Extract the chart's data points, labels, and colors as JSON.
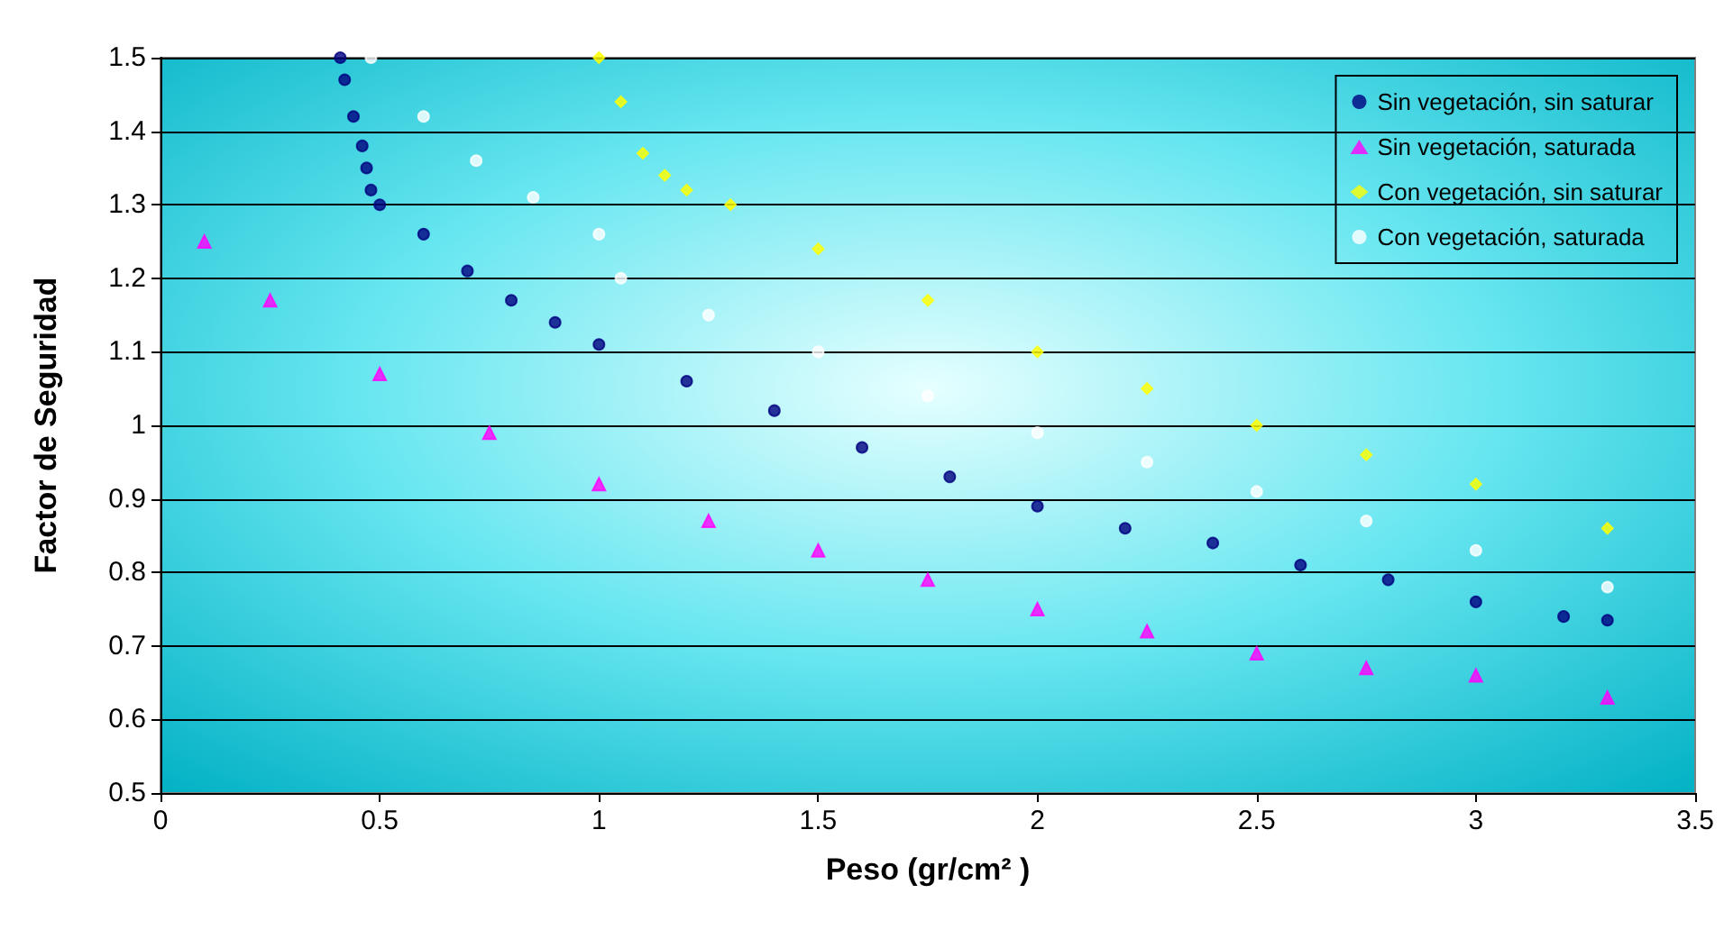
{
  "chart_data": {
    "type": "scatter",
    "xlabel": "Peso (gr/cm² )",
    "ylabel": "Factor de Seguridad",
    "xlim": [
      0,
      3.5
    ],
    "xticks": [
      0,
      0.5,
      1,
      1.5,
      2,
      2.5,
      3,
      3.5
    ],
    "ylim": [
      0.5,
      1.5
    ],
    "yticks": [
      0.5,
      0.6,
      0.7,
      0.8,
      0.9,
      1,
      1.1,
      1.2,
      1.3,
      1.4,
      1.5
    ],
    "grid": "y",
    "legend": "top right",
    "series": [
      {
        "name": "Sin vegetación, sin saturar",
        "color": "#000080",
        "marker": "circle",
        "x": [
          0.41,
          0.42,
          0.44,
          0.46,
          0.47,
          0.48,
          0.5,
          0.6,
          0.7,
          0.8,
          0.9,
          1.0,
          1.2,
          1.4,
          1.6,
          1.8,
          2.0,
          2.2,
          2.4,
          2.6,
          2.8,
          3.0,
          3.2,
          3.3
        ],
        "values": [
          1.5,
          1.47,
          1.42,
          1.38,
          1.35,
          1.32,
          1.3,
          1.26,
          1.21,
          1.17,
          1.14,
          1.11,
          1.06,
          1.02,
          0.97,
          0.93,
          0.89,
          0.86,
          0.84,
          0.81,
          0.79,
          0.76,
          0.74,
          0.735
        ]
      },
      {
        "name": "Sin vegetación, saturada",
        "color": "#ff00ff",
        "marker": "triangle",
        "x": [
          0.1,
          0.25,
          0.5,
          0.75,
          1.0,
          1.25,
          1.5,
          1.75,
          2.0,
          2.25,
          2.5,
          2.75,
          3.0,
          3.3
        ],
        "values": [
          1.25,
          1.17,
          1.07,
          0.99,
          0.92,
          0.87,
          0.83,
          0.79,
          0.75,
          0.72,
          0.69,
          0.67,
          0.66,
          0.63
        ]
      },
      {
        "name": "Con vegetación, sin saturar",
        "color": "#ffff00",
        "marker": "diamond",
        "x": [
          1.0,
          1.05,
          1.1,
          1.15,
          1.2,
          1.3,
          1.5,
          1.75,
          2.0,
          2.25,
          2.5,
          2.75,
          3.0,
          3.3
        ],
        "values": [
          1.5,
          1.44,
          1.37,
          1.34,
          1.32,
          1.3,
          1.24,
          1.17,
          1.1,
          1.05,
          1.0,
          0.96,
          0.92,
          0.86
        ]
      },
      {
        "name": "Con vegetación, saturada",
        "color": "#ffffff",
        "marker": "circle",
        "x": [
          0.48,
          0.6,
          0.72,
          0.85,
          1.0,
          1.05,
          1.25,
          1.5,
          1.75,
          2.0,
          2.25,
          2.5,
          2.75,
          3.0,
          3.3
        ],
        "values": [
          1.5,
          1.42,
          1.36,
          1.31,
          1.26,
          1.2,
          1.15,
          1.1,
          1.04,
          0.99,
          0.95,
          0.91,
          0.87,
          0.83,
          0.78
        ]
      }
    ]
  }
}
